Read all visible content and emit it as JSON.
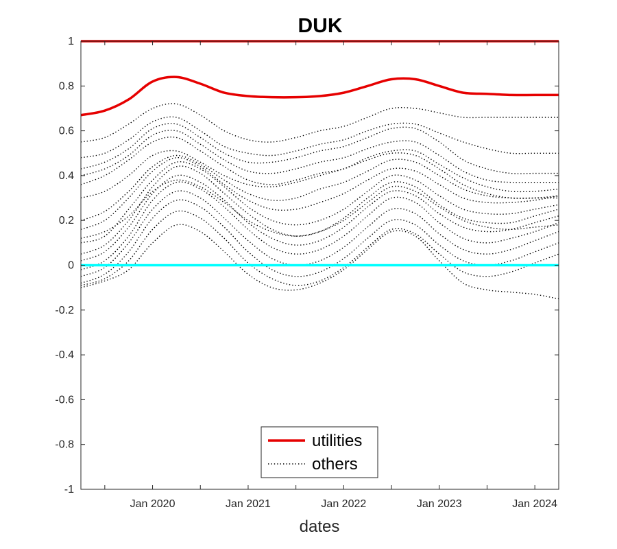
{
  "chart_data": {
    "type": "line",
    "title": "DUK",
    "xlabel": "dates",
    "ylabel": "",
    "xlim": [
      "2019-04",
      "2024-04"
    ],
    "ylim": [
      -1,
      1
    ],
    "x_ticks": [
      "Jan 2020",
      "Jan 2021",
      "Jan 2022",
      "Jan 2023",
      "Jan 2024"
    ],
    "y_ticks": [
      "1",
      "0.8",
      "0.6",
      "0.4",
      "0.2",
      "0",
      "-0.2",
      "-0.4",
      "-0.6",
      "-0.8",
      "-1"
    ],
    "legend": {
      "location": "bottom-center",
      "entries": [
        "utilities",
        "others"
      ]
    },
    "colors": {
      "utilities": "#e60000",
      "others": "#000000",
      "zero_line": "#00ffff"
    },
    "x": [
      "2019-04",
      "2019-07",
      "2019-10",
      "2020-01",
      "2020-04",
      "2020-07",
      "2020-10",
      "2021-01",
      "2021-04",
      "2021-07",
      "2021-10",
      "2022-01",
      "2022-04",
      "2022-07",
      "2022-10",
      "2023-01",
      "2023-04",
      "2023-07",
      "2023-10",
      "2024-01",
      "2024-04"
    ],
    "series": [
      {
        "name": "utilities",
        "style": "solid",
        "values": [
          1,
          1,
          1,
          1,
          1,
          1,
          1,
          1,
          1,
          1,
          1,
          1,
          1,
          1,
          1,
          1,
          1,
          1,
          1,
          1,
          1
        ]
      },
      {
        "name": "utilities",
        "style": "solid",
        "values": [
          0.67,
          0.69,
          0.74,
          0.82,
          0.84,
          0.81,
          0.77,
          0.755,
          0.75,
          0.75,
          0.755,
          0.77,
          0.8,
          0.83,
          0.83,
          0.8,
          0.77,
          0.765,
          0.76,
          0.76,
          0.76
        ]
      },
      {
        "name": "",
        "style": "solid",
        "values": [
          0,
          0,
          0,
          0,
          0,
          0,
          0,
          0,
          0,
          0,
          0,
          0,
          0,
          0,
          0,
          0,
          0,
          0,
          0,
          0,
          0
        ]
      },
      {
        "name": "others",
        "style": "dotted",
        "values": [
          0.55,
          0.57,
          0.63,
          0.7,
          0.72,
          0.67,
          0.6,
          0.56,
          0.55,
          0.57,
          0.6,
          0.62,
          0.66,
          0.7,
          0.7,
          0.68,
          0.66,
          0.66,
          0.66,
          0.66,
          0.66
        ]
      },
      {
        "name": "others",
        "style": "dotted",
        "values": [
          0.48,
          0.5,
          0.56,
          0.64,
          0.66,
          0.6,
          0.53,
          0.5,
          0.49,
          0.51,
          0.54,
          0.56,
          0.6,
          0.63,
          0.63,
          0.59,
          0.55,
          0.52,
          0.5,
          0.5,
          0.5
        ]
      },
      {
        "name": "others",
        "style": "dotted",
        "values": [
          0.43,
          0.46,
          0.52,
          0.61,
          0.63,
          0.57,
          0.5,
          0.46,
          0.46,
          0.48,
          0.51,
          0.53,
          0.57,
          0.61,
          0.61,
          0.55,
          0.47,
          0.43,
          0.41,
          0.41,
          0.41
        ]
      },
      {
        "name": "others",
        "style": "dotted",
        "values": [
          0.4,
          0.43,
          0.49,
          0.58,
          0.6,
          0.54,
          0.47,
          0.42,
          0.41,
          0.43,
          0.46,
          0.48,
          0.52,
          0.55,
          0.55,
          0.49,
          0.42,
          0.38,
          0.37,
          0.37,
          0.37
        ]
      },
      {
        "name": "others",
        "style": "dotted",
        "values": [
          0.36,
          0.4,
          0.47,
          0.55,
          0.57,
          0.51,
          0.44,
          0.38,
          0.36,
          0.38,
          0.41,
          0.43,
          0.48,
          0.51,
          0.51,
          0.45,
          0.39,
          0.35,
          0.33,
          0.33,
          0.34
        ]
      },
      {
        "name": "others",
        "style": "dotted",
        "values": [
          0.2,
          0.24,
          0.33,
          0.44,
          0.49,
          0.45,
          0.38,
          0.32,
          0.29,
          0.3,
          0.34,
          0.37,
          0.42,
          0.47,
          0.46,
          0.4,
          0.34,
          0.31,
          0.3,
          0.3,
          0.31
        ]
      },
      {
        "name": "others",
        "style": "dotted",
        "values": [
          0.16,
          0.2,
          0.3,
          0.42,
          0.48,
          0.44,
          0.36,
          0.29,
          0.25,
          0.25,
          0.28,
          0.32,
          0.38,
          0.43,
          0.42,
          0.36,
          0.3,
          0.28,
          0.28,
          0.29,
          0.31
        ]
      },
      {
        "name": "others",
        "style": "dotted",
        "values": [
          0.1,
          0.13,
          0.25,
          0.38,
          0.46,
          0.43,
          0.35,
          0.26,
          0.2,
          0.18,
          0.2,
          0.25,
          0.33,
          0.4,
          0.38,
          0.31,
          0.25,
          0.23,
          0.23,
          0.25,
          0.27
        ]
      },
      {
        "name": "others",
        "style": "dotted",
        "values": [
          0.05,
          0.09,
          0.2,
          0.35,
          0.44,
          0.41,
          0.32,
          0.23,
          0.16,
          0.13,
          0.15,
          0.21,
          0.3,
          0.37,
          0.35,
          0.27,
          0.21,
          0.19,
          0.19,
          0.22,
          0.25
        ]
      },
      {
        "name": "others",
        "style": "dotted",
        "values": [
          0.02,
          0.06,
          0.17,
          0.32,
          0.4,
          0.37,
          0.29,
          0.19,
          0.12,
          0.09,
          0.11,
          0.17,
          0.26,
          0.33,
          0.31,
          0.23,
          0.17,
          0.15,
          0.16,
          0.19,
          0.22
        ]
      },
      {
        "name": "others",
        "style": "dotted",
        "values": [
          -0.02,
          0.02,
          0.13,
          0.29,
          0.37,
          0.34,
          0.26,
          0.16,
          0.08,
          0.05,
          0.07,
          0.13,
          0.22,
          0.3,
          0.28,
          0.19,
          0.12,
          0.1,
          0.12,
          0.15,
          0.19
        ]
      },
      {
        "name": "others",
        "style": "dotted",
        "values": [
          -0.05,
          -0.01,
          0.1,
          0.25,
          0.33,
          0.3,
          0.21,
          0.11,
          0.03,
          0.0,
          0.02,
          0.08,
          0.17,
          0.25,
          0.23,
          0.14,
          0.07,
          0.05,
          0.07,
          0.11,
          0.15
        ]
      },
      {
        "name": "others",
        "style": "dotted",
        "values": [
          -0.08,
          -0.04,
          0.06,
          0.21,
          0.29,
          0.26,
          0.17,
          0.06,
          -0.02,
          -0.05,
          -0.03,
          0.03,
          0.12,
          0.2,
          0.18,
          0.09,
          0.02,
          0.0,
          0.02,
          0.06,
          0.1
        ]
      },
      {
        "name": "others",
        "style": "dotted",
        "values": [
          -0.09,
          -0.06,
          0.02,
          0.16,
          0.24,
          0.21,
          0.12,
          0.01,
          -0.06,
          -0.09,
          -0.07,
          -0.01,
          0.08,
          0.16,
          0.14,
          0.05,
          -0.03,
          -0.05,
          -0.03,
          0.01,
          0.05
        ]
      },
      {
        "name": "others",
        "style": "dotted",
        "values": [
          -0.1,
          -0.07,
          -0.02,
          0.1,
          0.18,
          0.15,
          0.06,
          -0.04,
          -0.1,
          -0.11,
          -0.08,
          -0.02,
          0.07,
          0.15,
          0.13,
          0.02,
          -0.08,
          -0.11,
          -0.12,
          -0.13,
          -0.15
        ]
      },
      {
        "name": "others",
        "style": "dotted",
        "values": [
          0.3,
          0.33,
          0.4,
          0.49,
          0.51,
          0.46,
          0.4,
          0.36,
          0.35,
          0.37,
          0.4,
          0.43,
          0.47,
          0.5,
          0.49,
          0.43,
          0.36,
          0.32,
          0.3,
          0.3,
          0.3
        ]
      },
      {
        "name": "others",
        "style": "dotted",
        "values": [
          0.12,
          0.15,
          0.22,
          0.33,
          0.38,
          0.35,
          0.28,
          0.2,
          0.15,
          0.13,
          0.15,
          0.2,
          0.28,
          0.35,
          0.33,
          0.26,
          0.2,
          0.17,
          0.16,
          0.17,
          0.18
        ]
      }
    ]
  }
}
